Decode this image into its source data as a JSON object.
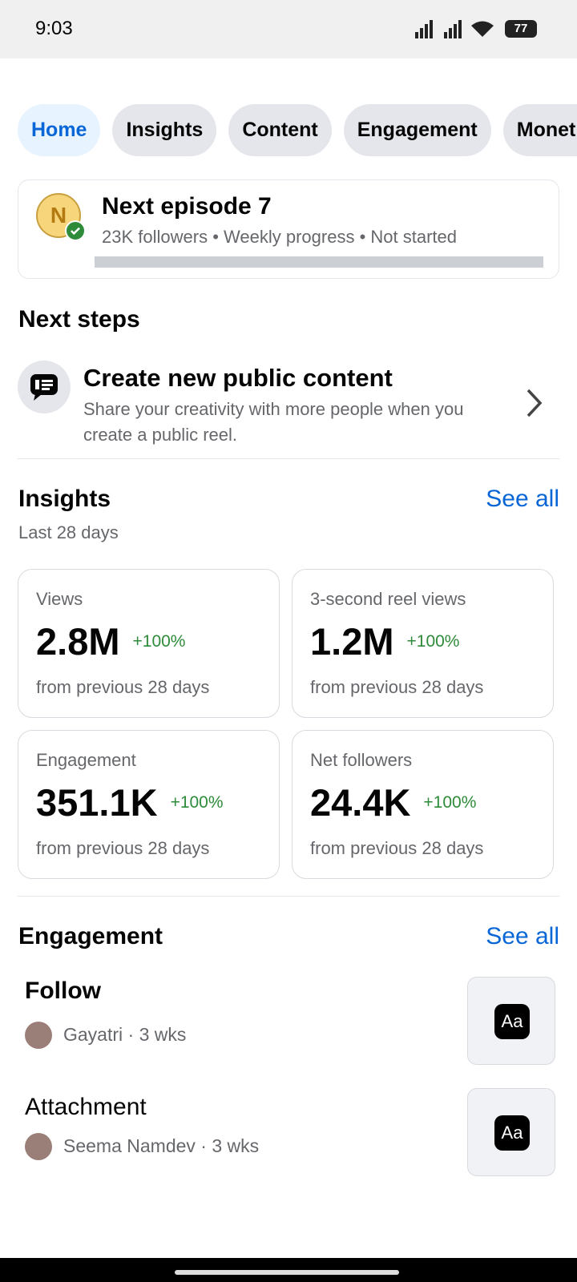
{
  "status_bar": {
    "time": "9:03",
    "battery": "77"
  },
  "tabs": [
    "Home",
    "Insights",
    "Content",
    "Engagement",
    "Monetization"
  ],
  "episode": {
    "avatar": "N",
    "title": "Next episode 7",
    "meta": [
      "23K followers",
      "Weekly progress",
      "Not started"
    ]
  },
  "next_steps": {
    "heading": "Next steps",
    "title": "Create new public content",
    "description": "Share your creativity with more people when you create a public reel."
  },
  "insights": {
    "heading": "Insights",
    "see_all": "See all",
    "period": "Last 28 days",
    "cards": [
      {
        "label": "Views",
        "value": "2.8M",
        "change": "+100%",
        "note": "from previous 28 days"
      },
      {
        "label": "3-second reel views",
        "value": "1.2M",
        "change": "+100%",
        "note": "from previous 28 days"
      },
      {
        "label": "Engagement",
        "value": "351.1K",
        "change": "+100%",
        "note": "from previous 28 days"
      },
      {
        "label": "Net followers",
        "value": "24.4K",
        "change": "+100%",
        "note": "from previous 28 days"
      }
    ]
  },
  "engagement": {
    "heading": "Engagement",
    "see_all": "See all",
    "items": [
      {
        "title": "Follow",
        "author": "Gayatri",
        "age": "3 wks",
        "thumb": "Aa"
      },
      {
        "title": "Attachment",
        "author": "Seema Namdev",
        "age": "3 wks",
        "thumb": "Aa"
      }
    ]
  }
}
